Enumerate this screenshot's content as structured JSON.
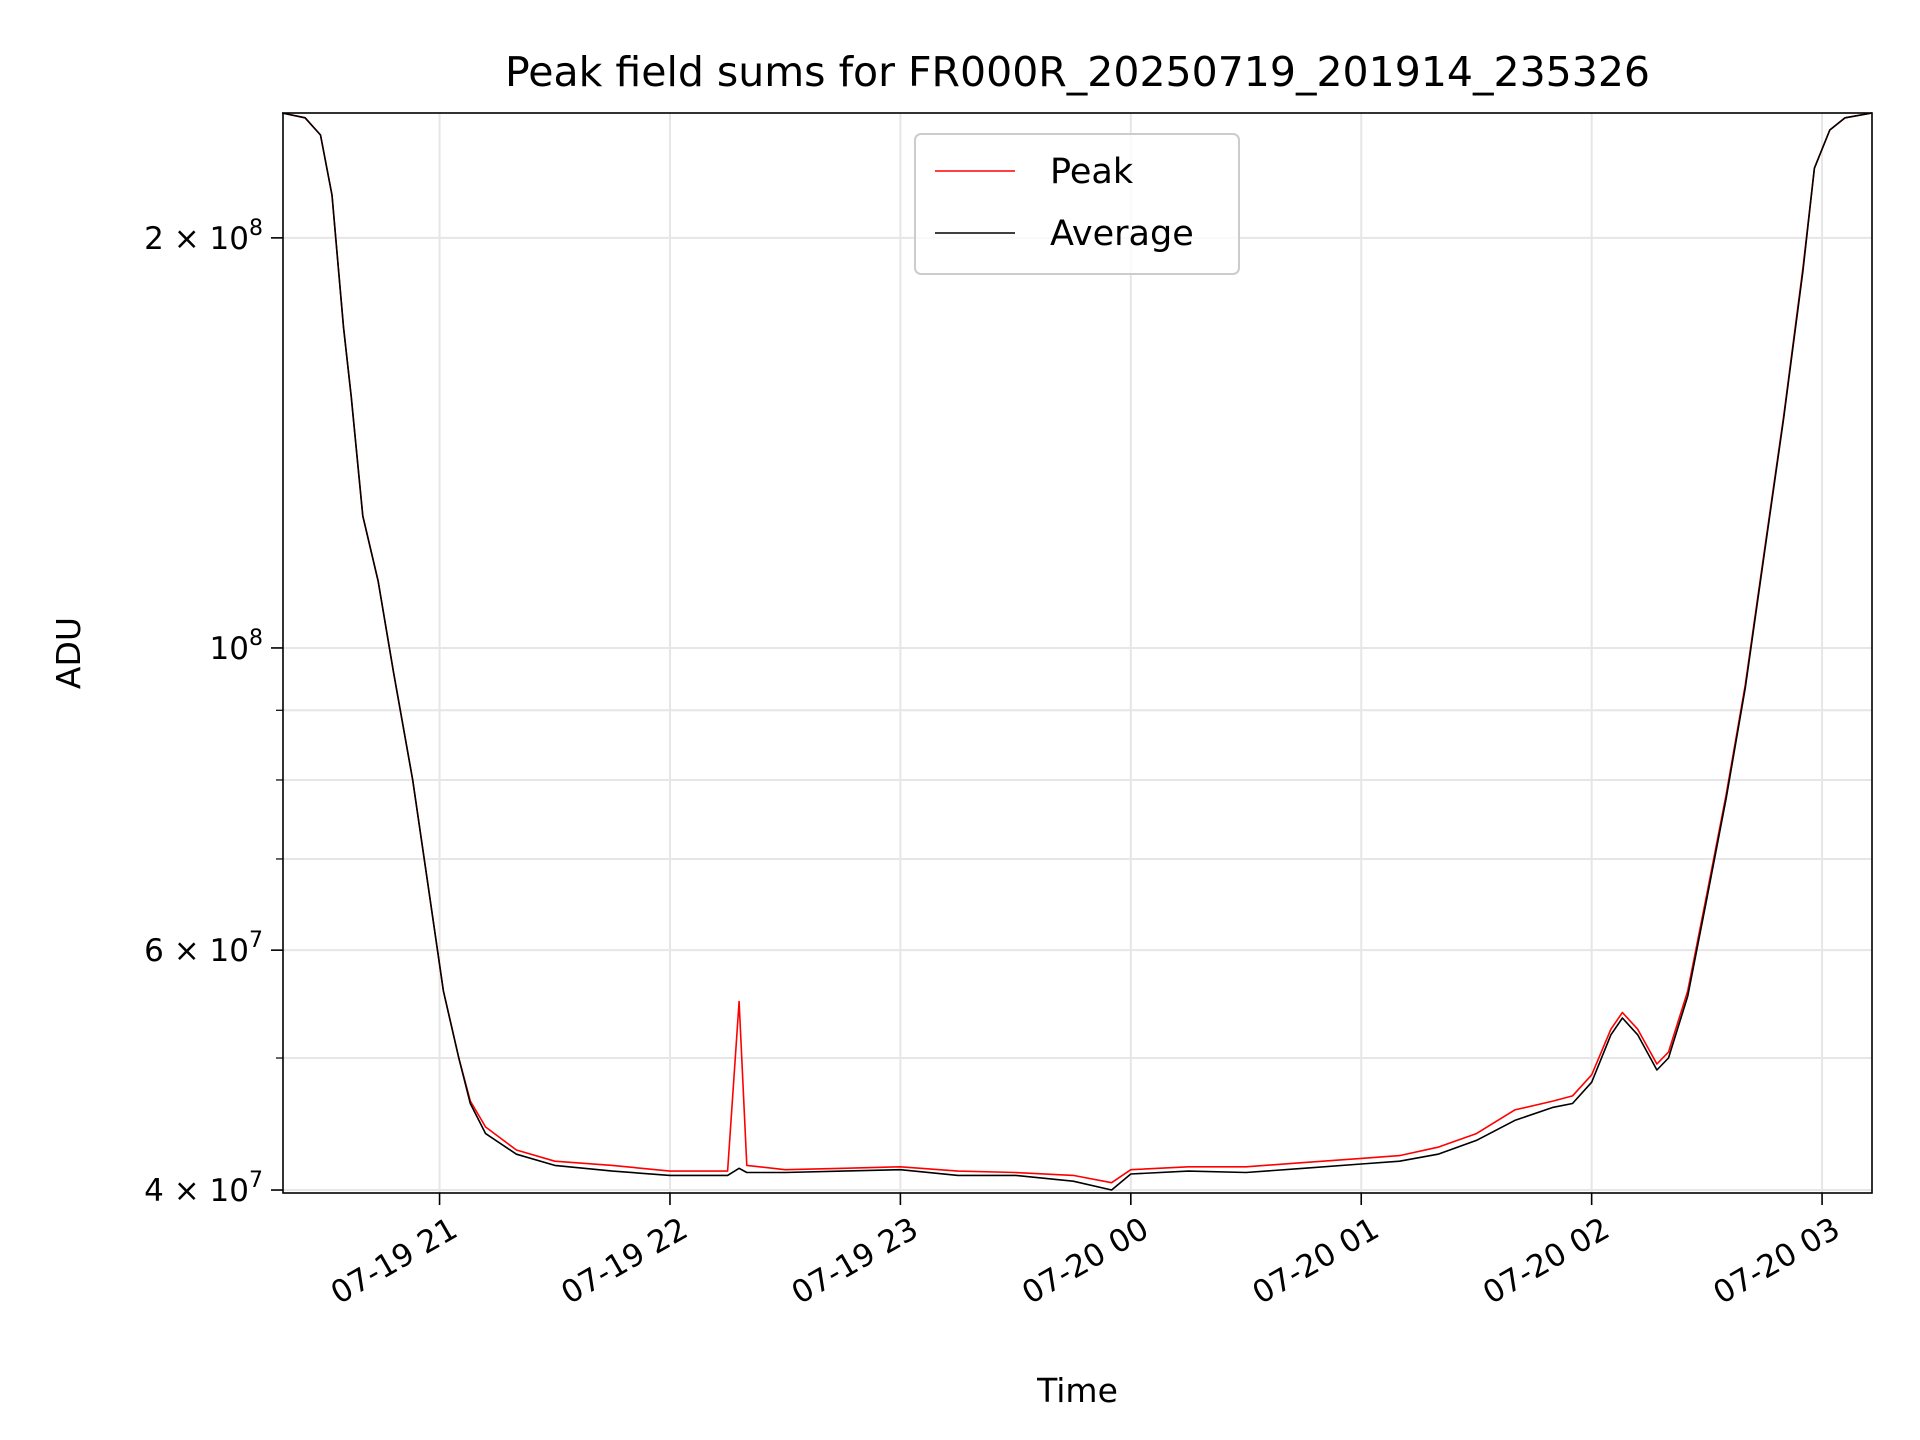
{
  "chart_data": {
    "type": "line",
    "title": "Peak field sums for FR000R_20250719_201914_235326",
    "xlabel": "Time",
    "ylabel": "ADU",
    "yscale": "log",
    "grid": true,
    "legend_position": "upper center",
    "xlim": [
      "2025-07-19 20:19:14",
      "2025-07-20 03:13:00"
    ],
    "ylim": [
      39800000,
      247000000
    ],
    "x_ticks": [
      "07-19 21",
      "07-19 22",
      "07-19 23",
      "07-20 00",
      "07-20 01",
      "07-20 02",
      "07-20 03"
    ],
    "x_tick_values": [
      "2025-07-19 21:00",
      "2025-07-19 22:00",
      "2025-07-19 23:00",
      "2025-07-20 00:00",
      "2025-07-20 01:00",
      "2025-07-20 02:00",
      "2025-07-20 03:00"
    ],
    "y_ticks": [
      {
        "value": 40000000,
        "mantissa": "4",
        "exp": "7"
      },
      {
        "value": 60000000,
        "mantissa": "6",
        "exp": "7"
      },
      {
        "value": 100000000,
        "mantissa": "",
        "exp": "8"
      },
      {
        "value": 200000000,
        "mantissa": "2",
        "exp": "8"
      }
    ],
    "y_minor_ticks": [
      50000000,
      70000000,
      80000000,
      90000000
    ],
    "series": [
      {
        "name": "Peak",
        "color": "#ff0000",
        "x": [
          "2025-07-19 20:19",
          "2025-07-19 20:25",
          "2025-07-19 20:29",
          "2025-07-19 20:32",
          "2025-07-19 20:35",
          "2025-07-19 20:37",
          "2025-07-19 20:40",
          "2025-07-19 20:44",
          "2025-07-19 20:48",
          "2025-07-19 20:53",
          "2025-07-19 20:57",
          "2025-07-19 21:01",
          "2025-07-19 21:05",
          "2025-07-19 21:08",
          "2025-07-19 21:12",
          "2025-07-19 21:20",
          "2025-07-19 21:30",
          "2025-07-19 21:45",
          "2025-07-19 22:00",
          "2025-07-19 22:15",
          "2025-07-19 22:18",
          "2025-07-19 22:20",
          "2025-07-19 22:30",
          "2025-07-19 22:45",
          "2025-07-19 23:00",
          "2025-07-19 23:15",
          "2025-07-19 23:30",
          "2025-07-19 23:45",
          "2025-07-19 23:55",
          "2025-07-20 00:00",
          "2025-07-20 00:15",
          "2025-07-20 00:30",
          "2025-07-20 00:45",
          "2025-07-20 01:00",
          "2025-07-20 01:10",
          "2025-07-20 01:20",
          "2025-07-20 01:30",
          "2025-07-20 01:40",
          "2025-07-20 01:50",
          "2025-07-20 01:55",
          "2025-07-20 02:00",
          "2025-07-20 02:05",
          "2025-07-20 02:08",
          "2025-07-20 02:12",
          "2025-07-20 02:17",
          "2025-07-20 02:20",
          "2025-07-20 02:25",
          "2025-07-20 02:30",
          "2025-07-20 02:35",
          "2025-07-20 02:40",
          "2025-07-20 02:45",
          "2025-07-20 02:50",
          "2025-07-20 02:55",
          "2025-07-20 02:58",
          "2025-07-20 03:02",
          "2025-07-20 03:06",
          "2025-07-20 03:13"
        ],
        "y": [
          247000000,
          245000000,
          238000000,
          215000000,
          172000000,
          153000000,
          125000000,
          112000000,
          96000000,
          80000000,
          67000000,
          56000000,
          50000000,
          46500000,
          44500000,
          42800000,
          42000000,
          41700000,
          41300000,
          41300000,
          55000000,
          41700000,
          41400000,
          41500000,
          41600000,
          41300000,
          41200000,
          41000000,
          40500000,
          41400000,
          41600000,
          41600000,
          41900000,
          42200000,
          42400000,
          43000000,
          44000000,
          45800000,
          46500000,
          46900000,
          48600000,
          52500000,
          54000000,
          52500000,
          49500000,
          50500000,
          56000000,
          66000000,
          78000000,
          94000000,
          118000000,
          148000000,
          190000000,
          225000000,
          240000000,
          245000000,
          247000000
        ]
      },
      {
        "name": "Average",
        "color": "#000000",
        "x": [
          "2025-07-19 20:19",
          "2025-07-19 20:25",
          "2025-07-19 20:29",
          "2025-07-19 20:32",
          "2025-07-19 20:35",
          "2025-07-19 20:37",
          "2025-07-19 20:40",
          "2025-07-19 20:44",
          "2025-07-19 20:48",
          "2025-07-19 20:53",
          "2025-07-19 20:57",
          "2025-07-19 21:01",
          "2025-07-19 21:05",
          "2025-07-19 21:08",
          "2025-07-19 21:12",
          "2025-07-19 21:20",
          "2025-07-19 21:30",
          "2025-07-19 21:45",
          "2025-07-19 22:00",
          "2025-07-19 22:15",
          "2025-07-19 22:18",
          "2025-07-19 22:20",
          "2025-07-19 22:30",
          "2025-07-19 22:45",
          "2025-07-19 23:00",
          "2025-07-19 23:15",
          "2025-07-19 23:30",
          "2025-07-19 23:45",
          "2025-07-19 23:55",
          "2025-07-20 00:00",
          "2025-07-20 00:15",
          "2025-07-20 00:30",
          "2025-07-20 00:45",
          "2025-07-20 01:00",
          "2025-07-20 01:10",
          "2025-07-20 01:20",
          "2025-07-20 01:30",
          "2025-07-20 01:40",
          "2025-07-20 01:50",
          "2025-07-20 01:55",
          "2025-07-20 02:00",
          "2025-07-20 02:05",
          "2025-07-20 02:08",
          "2025-07-20 02:12",
          "2025-07-20 02:17",
          "2025-07-20 02:20",
          "2025-07-20 02:25",
          "2025-07-20 02:30",
          "2025-07-20 02:35",
          "2025-07-20 02:40",
          "2025-07-20 02:45",
          "2025-07-20 02:50",
          "2025-07-20 02:55",
          "2025-07-20 02:58",
          "2025-07-20 03:02",
          "2025-07-20 03:06",
          "2025-07-20 03:13"
        ],
        "y": [
          247000000,
          245000000,
          238000000,
          215000000,
          172000000,
          153000000,
          125000000,
          112000000,
          96000000,
          80000000,
          67000000,
          56000000,
          50000000,
          46300000,
          44000000,
          42500000,
          41700000,
          41300000,
          41000000,
          41000000,
          41500000,
          41200000,
          41200000,
          41300000,
          41400000,
          41000000,
          41000000,
          40600000,
          40000000,
          41100000,
          41300000,
          41200000,
          41500000,
          41800000,
          42000000,
          42500000,
          43500000,
          45000000,
          46000000,
          46300000,
          48000000,
          52000000,
          53500000,
          52000000,
          49000000,
          50000000,
          55500000,
          65500000,
          77500000,
          93500000,
          117500000,
          147500000,
          189000000,
          225000000,
          240000000,
          245000000,
          247000000
        ]
      }
    ]
  }
}
